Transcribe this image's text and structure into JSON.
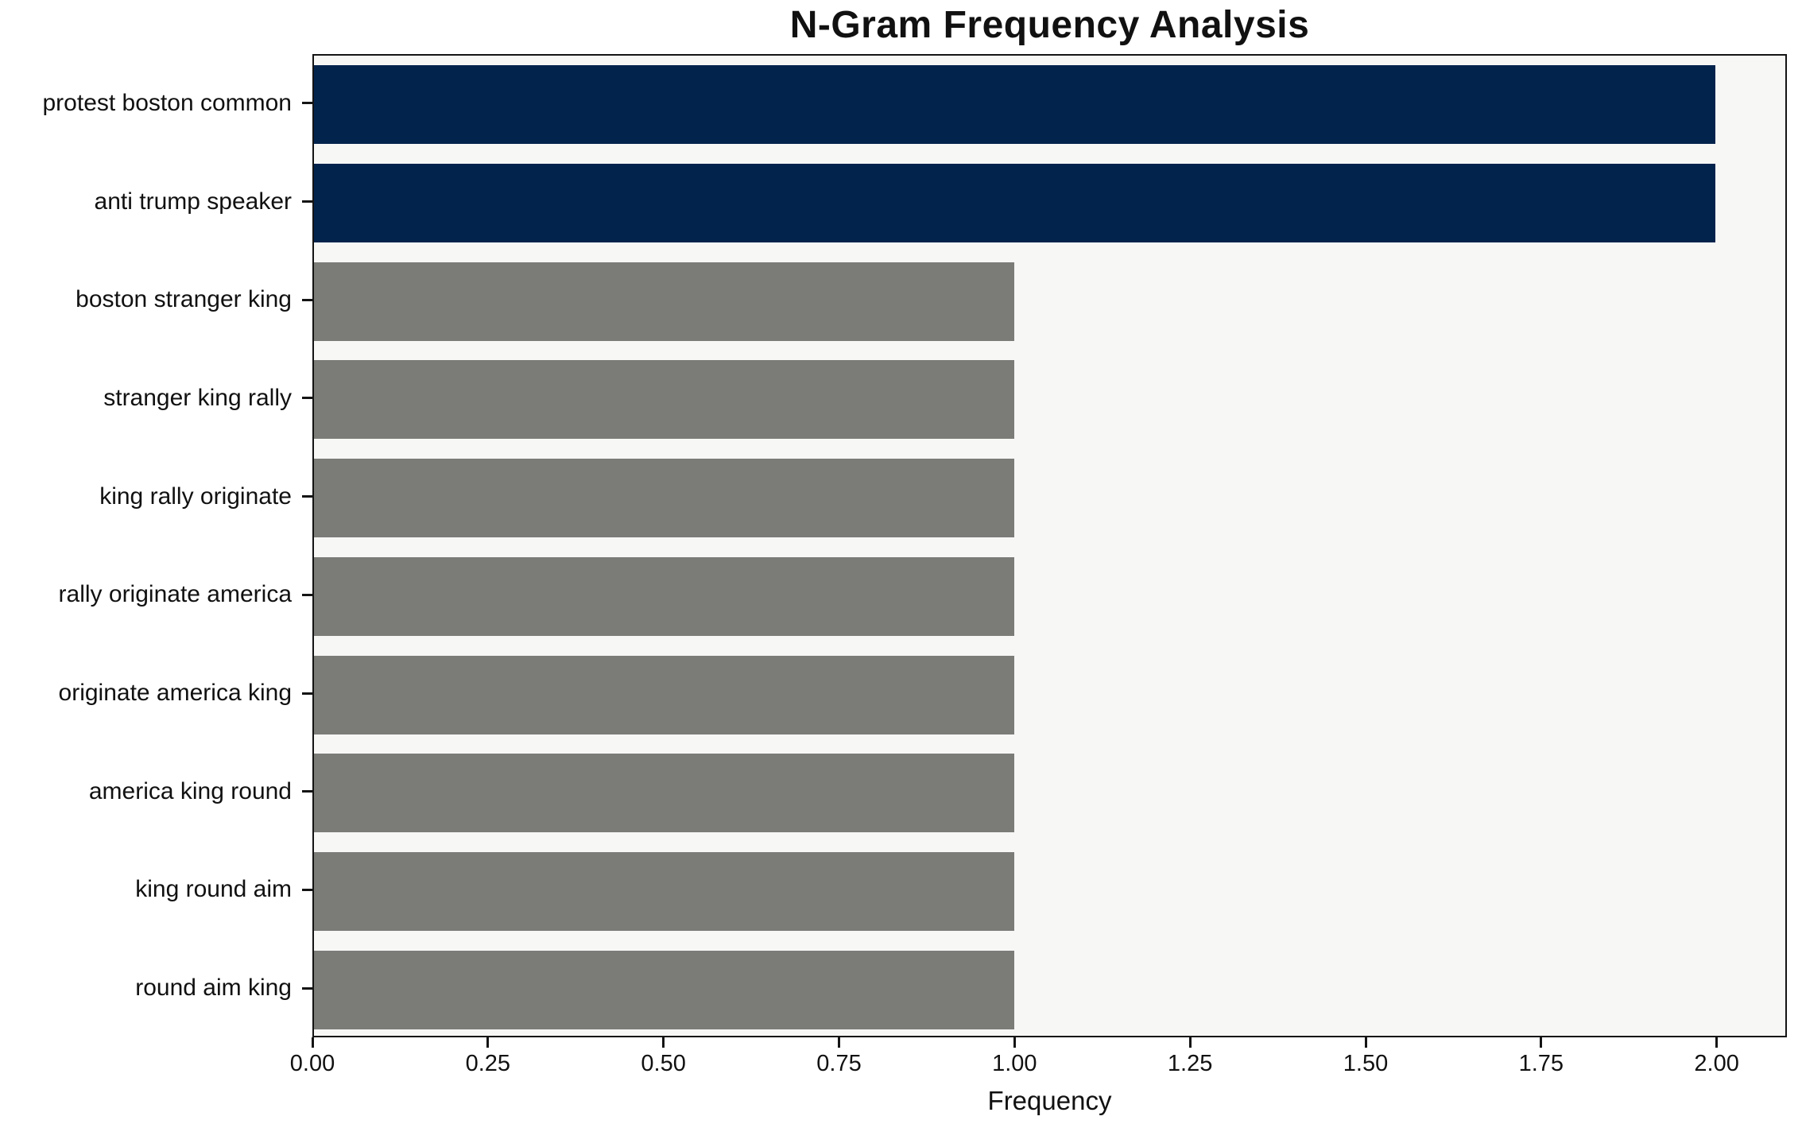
{
  "chart_data": {
    "type": "bar",
    "orientation": "horizontal",
    "title": "N-Gram Frequency Analysis",
    "xlabel": "Frequency",
    "ylabel": "",
    "categories": [
      "protest boston common",
      "anti trump speaker",
      "boston stranger king",
      "stranger king rally",
      "king rally originate",
      "rally originate america",
      "originate america king",
      "america king round",
      "king round aim",
      "round aim king"
    ],
    "values": [
      2,
      2,
      1,
      1,
      1,
      1,
      1,
      1,
      1,
      1
    ],
    "bar_colors": [
      "#02234c",
      "#02234c",
      "#7b7b78",
      "#7b7b78",
      "#7b7b78",
      "#7b7b78",
      "#7b7b78",
      "#7b7b78",
      "#7b7b78",
      "#7b7b78"
    ],
    "xlim": [
      0,
      2.1
    ],
    "xticks": [
      {
        "value": 0.0,
        "label": "0.00"
      },
      {
        "value": 0.25,
        "label": "0.25"
      },
      {
        "value": 0.5,
        "label": "0.50"
      },
      {
        "value": 0.75,
        "label": "0.75"
      },
      {
        "value": 1.0,
        "label": "1.00"
      },
      {
        "value": 1.25,
        "label": "1.25"
      },
      {
        "value": 1.5,
        "label": "1.50"
      },
      {
        "value": 1.75,
        "label": "1.75"
      },
      {
        "value": 2.0,
        "label": "2.00"
      }
    ],
    "grid": false,
    "legend": null,
    "colors": {
      "highlight": "#02234c",
      "default": "#7b7b78",
      "plot_background": "#f7f7f6",
      "figure_background": "#ffffff",
      "axis": "#141414"
    }
  }
}
